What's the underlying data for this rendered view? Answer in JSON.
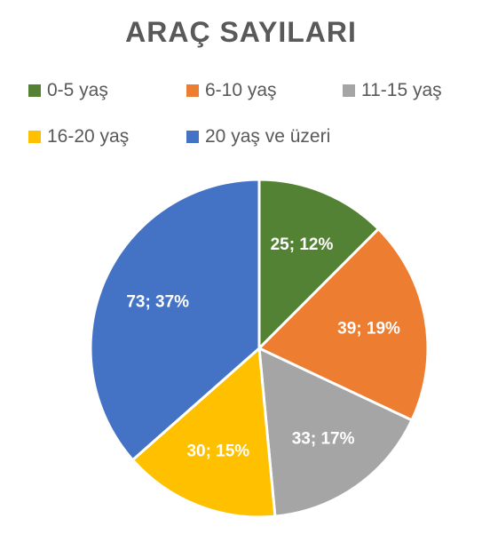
{
  "chart_data": {
    "type": "pie",
    "title": "ARAÇ SAYILARI",
    "categories": [
      "0-5 yaş",
      "6-10 yaş",
      "11-15 yaş",
      "16-20 yaş",
      "20 yaş ve üzeri"
    ],
    "values": [
      25,
      39,
      33,
      30,
      73
    ],
    "data_labels": [
      "25; 12%",
      "39; 19%",
      "33; 17%",
      "30; 15%",
      "73; 37%"
    ],
    "colors": [
      "#548235",
      "#ED7D31",
      "#A5A5A5",
      "#FFC000",
      "#4472C4"
    ],
    "legend_position": "top"
  }
}
